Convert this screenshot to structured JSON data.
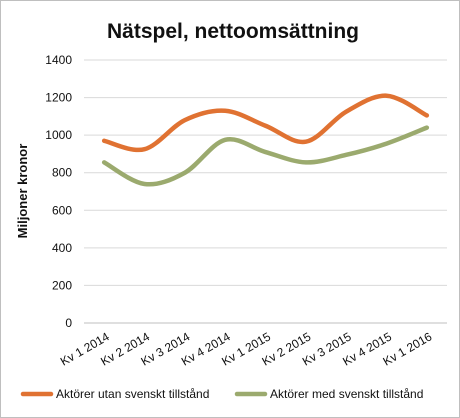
{
  "chart_data": {
    "type": "line",
    "title": "Nätspel, nettoomsättning",
    "xlabel": "",
    "ylabel": "Miljoner kronor",
    "ylim": [
      0,
      1400
    ],
    "yticks": [
      0,
      200,
      400,
      600,
      800,
      1000,
      1200,
      1400
    ],
    "grid": true,
    "smooth": true,
    "legend_position": "bottom",
    "categories": [
      "Kv 1 2014",
      "Kv 2 2014",
      "Kv 3 2014",
      "Kv 4 2014",
      "Kv 1 2015",
      "Kv 2 2015",
      "Kv 3 2015",
      "Kv 4 2015",
      "Kv 1 2016"
    ],
    "series": [
      {
        "name": "Aktörer utan svenskt tillstånd",
        "color": "#E07232",
        "values": [
          970,
          925,
          1080,
          1130,
          1050,
          965,
          1125,
          1210,
          1105
        ]
      },
      {
        "name": "Aktörer med svenskt tillstånd",
        "color": "#9BAA6E",
        "values": [
          855,
          740,
          800,
          975,
          910,
          855,
          895,
          955,
          1040
        ]
      }
    ]
  }
}
